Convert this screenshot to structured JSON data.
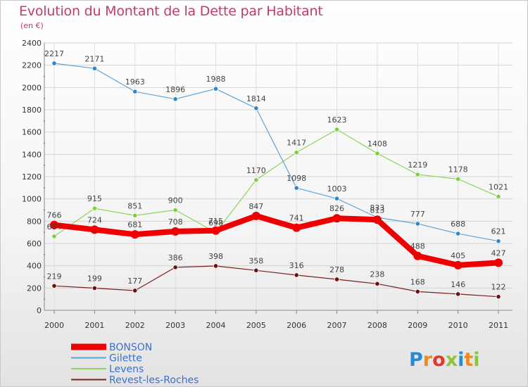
{
  "chart_data": {
    "type": "line",
    "title": "Evolution du Montant de la Dette par Habitant",
    "subtitle": "(en €)",
    "categories": [
      "2000",
      "2001",
      "2002",
      "2003",
      "2004",
      "2005",
      "2006",
      "2007",
      "2008",
      "2009",
      "2010",
      "2011"
    ],
    "ylim": [
      0,
      2400
    ],
    "yticks": [
      0,
      200,
      400,
      600,
      800,
      1000,
      1200,
      1400,
      1600,
      1800,
      2000,
      2200,
      2400
    ],
    "grid": true,
    "legend_position": "bottom-left",
    "series": [
      {
        "name": "Revest-les-Roches",
        "color": "#7a1f1f",
        "dot": "#6a1111",
        "width": 1.2,
        "values": [
          219,
          199,
          177,
          386,
          398,
          358,
          316,
          278,
          238,
          168,
          146,
          122
        ]
      },
      {
        "name": "Levens",
        "color": "#8fd45a",
        "dot": "#7ccf3e",
        "width": 1.2,
        "values": [
          664,
          915,
          851,
          900,
          698,
          1170,
          1417,
          1623,
          1408,
          1219,
          1178,
          1021
        ]
      },
      {
        "name": "Gilette",
        "color": "#5ea3d8",
        "dot": "#2f86c8",
        "width": 1.2,
        "values": [
          2217,
          2171,
          1963,
          1896,
          1988,
          1814,
          1098,
          1003,
          833,
          777,
          688,
          621
        ]
      },
      {
        "name": "BONSON",
        "color": "#ee0000",
        "dot": "#ee0000",
        "width": 8,
        "values": [
          766,
          724,
          681,
          708,
          715,
          847,
          741,
          826,
          813,
          488,
          405,
          427
        ]
      }
    ],
    "legend_order": [
      "BONSON",
      "Gilette",
      "Levens",
      "Revest-les-Roches"
    ]
  },
  "logo": [
    "P",
    "r",
    "o",
    "x",
    "i",
    "t",
    "i"
  ]
}
